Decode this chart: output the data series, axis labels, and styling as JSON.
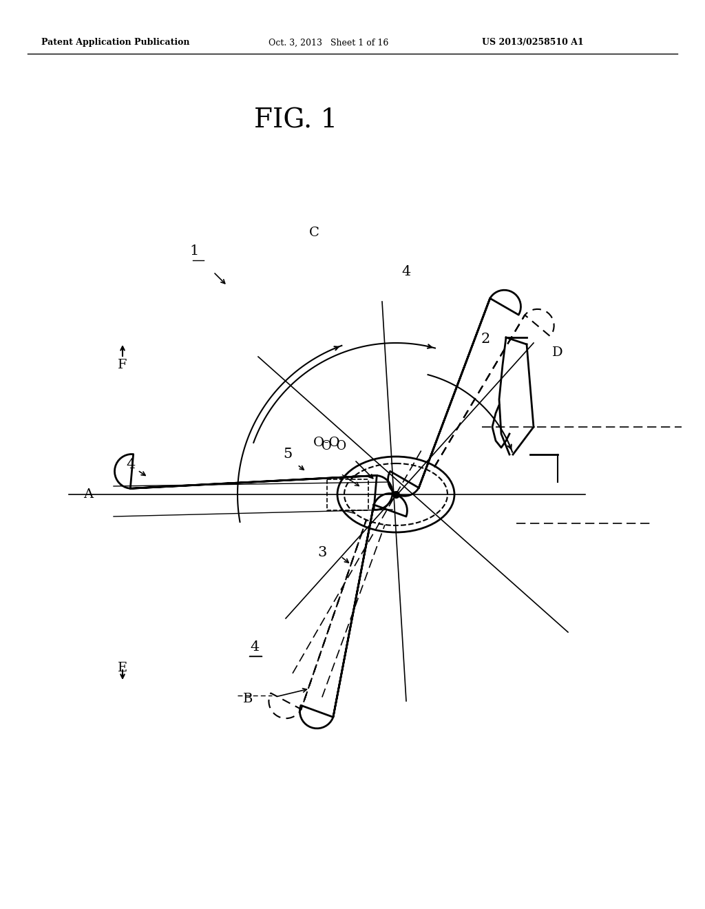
{
  "title": "FIG. 1",
  "header_left": "Patent Application Publication",
  "header_mid": "Oct. 3, 2013   Sheet 1 of 16",
  "header_right": "US 2013/0258510 A1",
  "bg_color": "#ffffff",
  "line_color": "#000000",
  "dashed_color": "#555555"
}
